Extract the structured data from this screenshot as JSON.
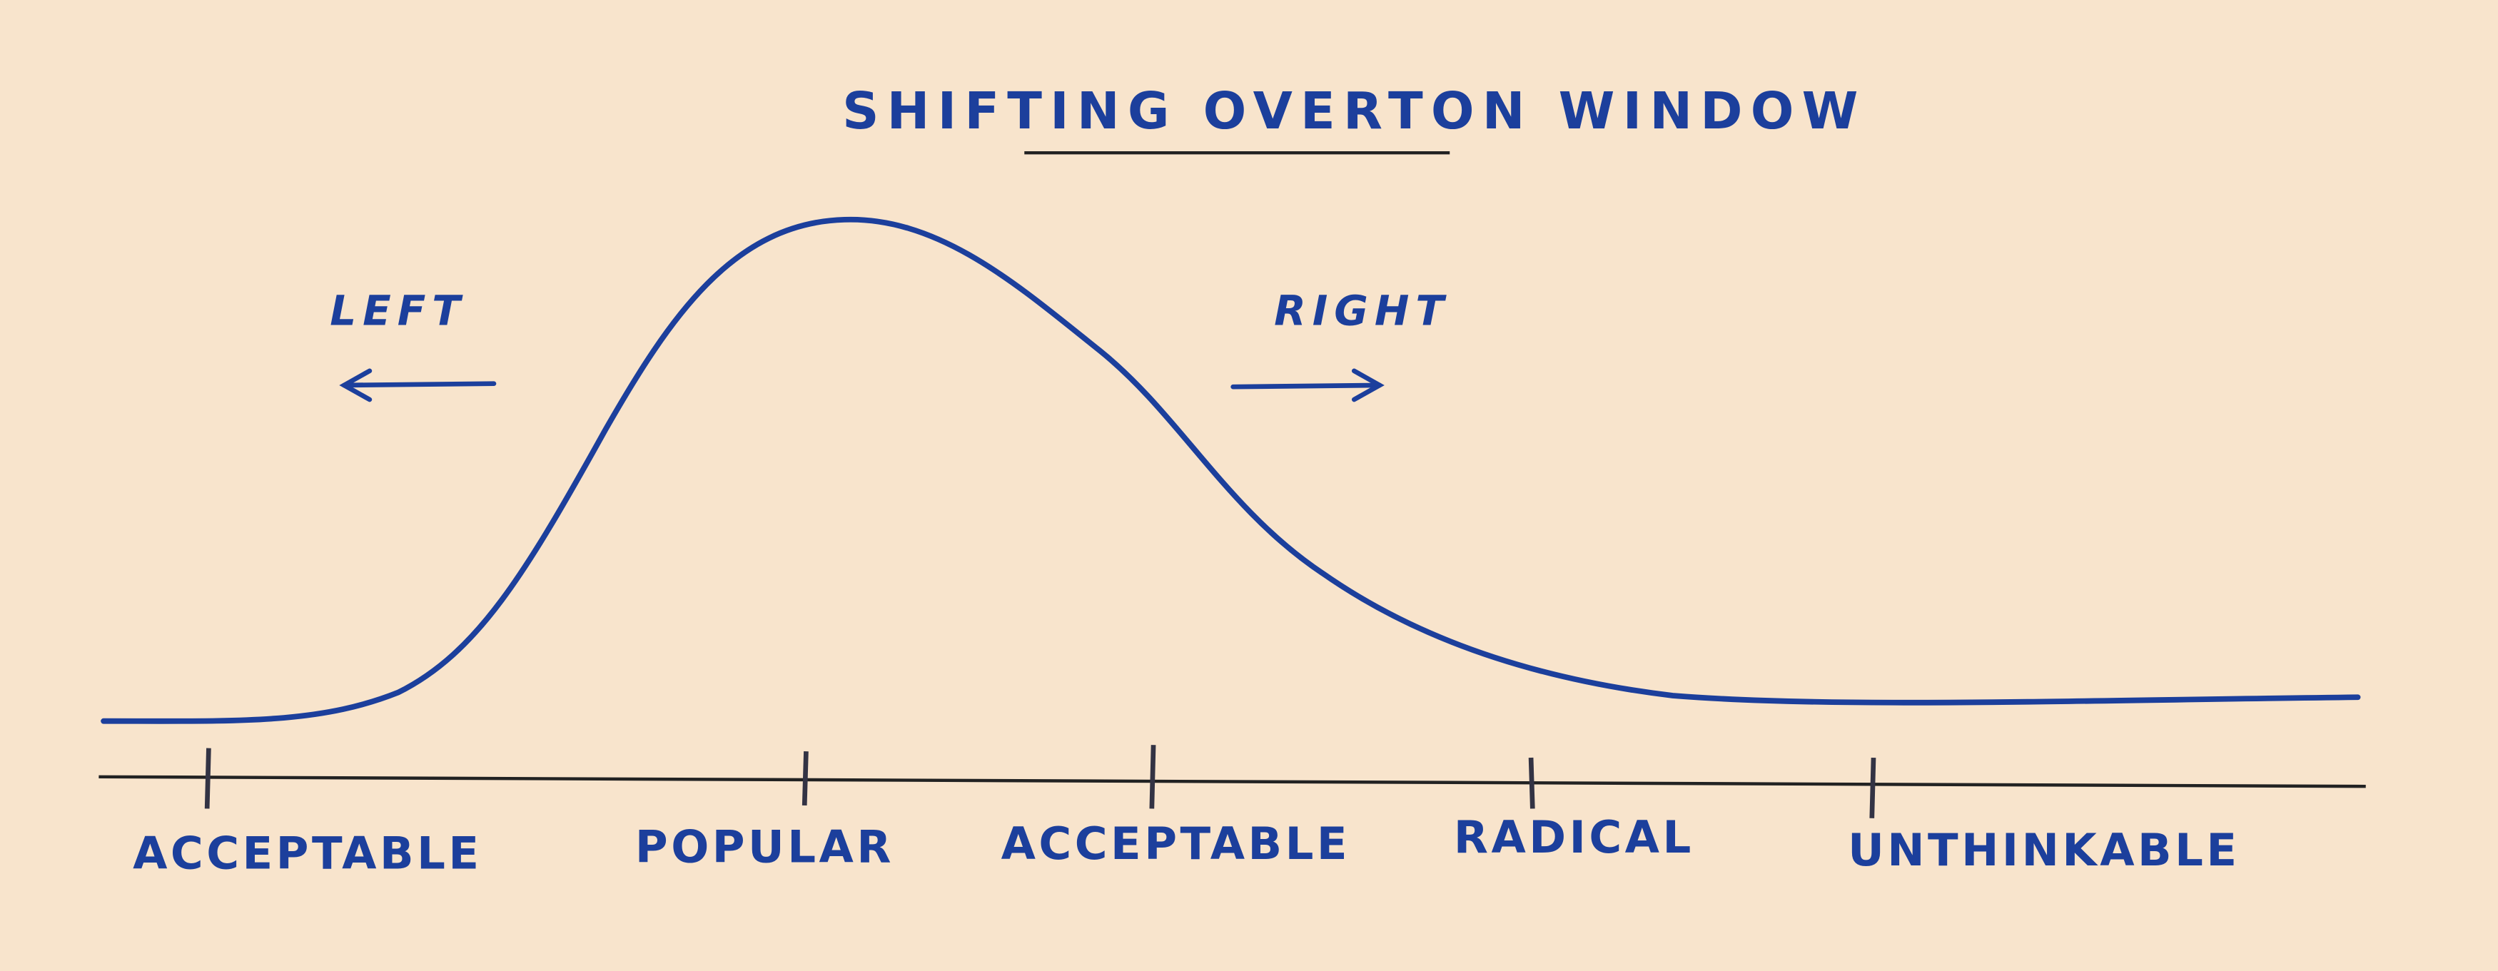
{
  "title": "SHIFTING OVERTON WINDOW",
  "directions": {
    "left": "LEFT",
    "right": "RIGHT"
  },
  "scale_labels": [
    "ACCEPTABLE",
    "POPULAR",
    "ACCEPTABLE",
    "RADICAL",
    "UNTHINKABLE"
  ]
}
